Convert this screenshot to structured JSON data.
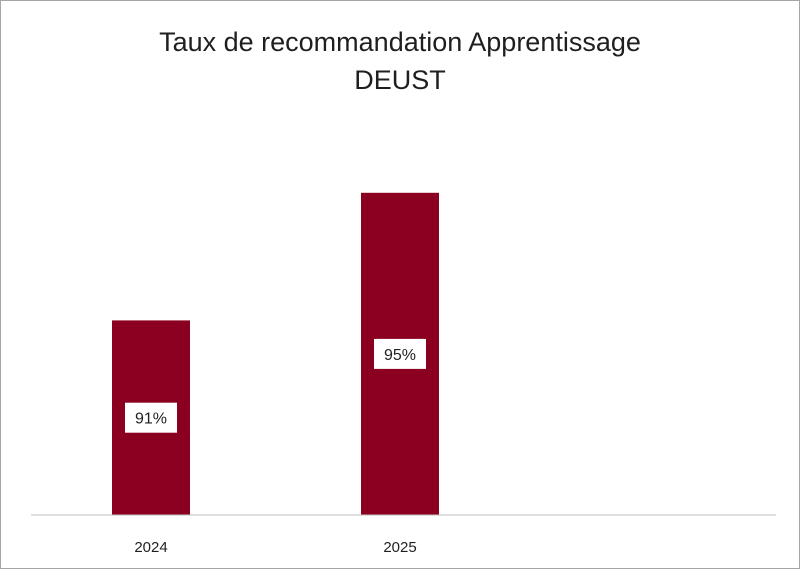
{
  "chart_data": {
    "type": "bar",
    "title_lines": [
      "Taux de recommandation Apprentissage",
      "DEUST"
    ],
    "categories": [
      "2024",
      "2025"
    ],
    "series": [
      {
        "values": [
          91,
          95
        ],
        "data_labels": [
          "91%",
          "95%"
        ],
        "color": "#8b0020"
      }
    ],
    "ylim": [
      84.9,
      97
    ],
    "grid": false,
    "legend": "none",
    "axis_color": "#bfbfbf",
    "data_label_bg": "#ffffff"
  }
}
